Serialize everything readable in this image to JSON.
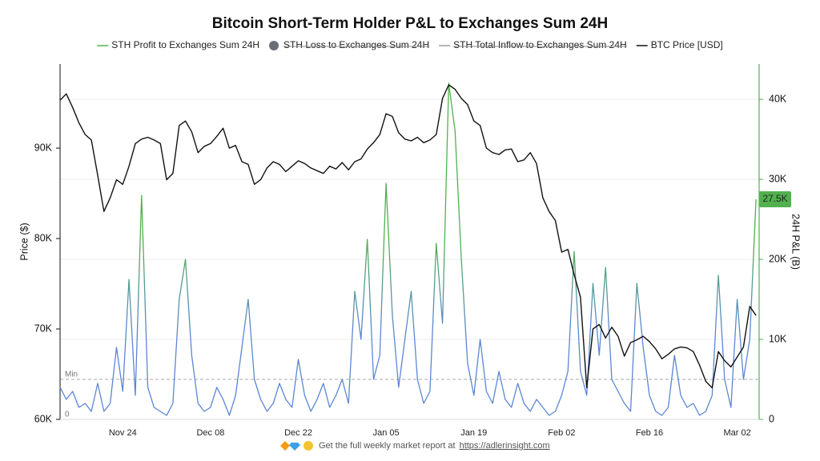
{
  "chart_data": {
    "type": "line",
    "title": "Bitcoin Short-Term Holder P&L to Exchanges Sum 24H",
    "ylabel": "Price ($)",
    "y2label": "24H P&L (B)",
    "categories": [
      null,
      null,
      null,
      null,
      null,
      null,
      null,
      null,
      null,
      null,
      "Nov 24",
      null,
      null,
      null,
      null,
      null,
      null,
      null,
      null,
      null,
      null,
      null,
      null,
      null,
      "Dec 08",
      null,
      null,
      null,
      null,
      null,
      null,
      null,
      null,
      null,
      null,
      null,
      null,
      null,
      "Dec 22",
      null,
      null,
      null,
      null,
      null,
      null,
      null,
      null,
      null,
      null,
      null,
      null,
      null,
      "Jan 05",
      null,
      null,
      null,
      null,
      null,
      null,
      null,
      null,
      null,
      null,
      null,
      null,
      null,
      "Jan 19",
      null,
      null,
      null,
      null,
      null,
      null,
      null,
      null,
      null,
      null,
      null,
      null,
      null,
      "Feb 02",
      null,
      null,
      null,
      null,
      null,
      null,
      null,
      null,
      null,
      null,
      null,
      null,
      null,
      "Feb 16",
      null,
      null,
      null,
      null,
      null,
      null,
      null,
      null,
      null,
      null,
      null,
      null,
      null,
      "Mar 02",
      null,
      null,
      null
    ],
    "series": [
      {
        "name": "STH Profit to Exchanges Sum 24H",
        "color": "#52b04f",
        "gradient_low_color": "#5b86d4",
        "axis": "y2",
        "visible": true,
        "values": [
          4000,
          2500,
          3500,
          1500,
          2000,
          1000,
          4500,
          1000,
          2000,
          9000,
          3500,
          17500,
          3000,
          28000,
          4000,
          1500,
          1000,
          500,
          2000,
          15000,
          20000,
          8000,
          2000,
          1000,
          1500,
          4000,
          2500,
          500,
          3000,
          9000,
          15000,
          5000,
          2500,
          1000,
          2000,
          4500,
          2500,
          1500,
          7500,
          3000,
          1000,
          2500,
          4500,
          1500,
          3000,
          5000,
          2000,
          16000,
          10000,
          22500,
          5000,
          8000,
          29500,
          13000,
          4000,
          10000,
          16000,
          5000,
          2000,
          3500,
          22000,
          12000,
          42000,
          36000,
          20000,
          7000,
          3000,
          10000,
          3500,
          2000,
          6000,
          2500,
          1500,
          4500,
          2000,
          1000,
          2500,
          1500,
          500,
          1000,
          3000,
          6000,
          21000,
          6000,
          3000,
          17000,
          8000,
          19000,
          5000,
          3500,
          2000,
          1000,
          17000,
          9000,
          3000,
          1000,
          500,
          1500,
          8000,
          3000,
          1500,
          2000,
          500,
          1000,
          3000,
          18000,
          5000,
          1500,
          15000,
          5000,
          10000,
          27500
        ],
        "value_labels": [
          null,
          null,
          null,
          null,
          null,
          null,
          null,
          null,
          null,
          null,
          null,
          null,
          null,
          null,
          null,
          null,
          null,
          null,
          null,
          null,
          null,
          null,
          null,
          null,
          null,
          null,
          null,
          null,
          null,
          null,
          null,
          null,
          null,
          null,
          null,
          null,
          null,
          null,
          null,
          null,
          null,
          null,
          null,
          null,
          null,
          null,
          null,
          null,
          null,
          null,
          null,
          null,
          null,
          null,
          null,
          null,
          null,
          null,
          null,
          null,
          null,
          null,
          null,
          null,
          null,
          null,
          null,
          null,
          null,
          null,
          null,
          null,
          null,
          null,
          null,
          null,
          null,
          null,
          null,
          null,
          null,
          null,
          null,
          null,
          null,
          null,
          null,
          null,
          null,
          null,
          null,
          null,
          null,
          null,
          null,
          null,
          null,
          null,
          null,
          null,
          null,
          null,
          null,
          null,
          null,
          null,
          null,
          null,
          null,
          null,
          null,
          "27.5K"
        ]
      },
      {
        "name": "STH Loss to Exchanges Sum 24H",
        "color": "#6b6e78",
        "marker": "circle",
        "axis": "y2",
        "visible": false
      },
      {
        "name": "STH Total Inflow to  Exchanges Sum 24H",
        "color": "#9a9ca3",
        "axis": "y2",
        "visible": false
      },
      {
        "name": "BTC Price [USD]",
        "color": "#111111",
        "axis": "y",
        "visible": true,
        "values": [
          95300,
          96000,
          94500,
          92800,
          91500,
          90900,
          87000,
          83000,
          84500,
          86500,
          86000,
          88000,
          90500,
          91000,
          91200,
          90900,
          90500,
          86500,
          87200,
          92500,
          93000,
          91800,
          89500,
          90200,
          90500,
          91300,
          92200,
          90000,
          90300,
          88500,
          88200,
          86000,
          86500,
          87800,
          88500,
          88200,
          87400,
          88000,
          88600,
          88300,
          87800,
          87500,
          87200,
          88000,
          87700,
          88400,
          87600,
          88500,
          88800,
          89900,
          90600,
          91500,
          93800,
          93500,
          91700,
          91000,
          90800,
          91200,
          90600,
          90900,
          91500,
          95500,
          97000,
          96500,
          95500,
          94800,
          93000,
          92500,
          90000,
          89500,
          89300,
          89800,
          89900,
          88500,
          88700,
          89500,
          88300,
          84500,
          83000,
          82000,
          78500,
          78800,
          76000,
          73500,
          63500,
          70000,
          70500,
          69000,
          70200,
          69200,
          67000,
          68500,
          68800,
          69200,
          68600,
          67800,
          66700,
          67200,
          67800,
          68000,
          67900,
          67500,
          66000,
          64200,
          63500,
          67500,
          66500,
          65800,
          66900,
          68000,
          72500,
          71500
        ]
      }
    ],
    "ylim": [
      60000,
      99300
    ],
    "yticks": [
      {
        "value": 60000,
        "label": "60K"
      },
      {
        "value": 70000,
        "label": "70K"
      },
      {
        "value": 80000,
        "label": "80K"
      },
      {
        "value": 90000,
        "label": "90K"
      }
    ],
    "y2lim": [
      0,
      44400
    ],
    "y2ticks": [
      0,
      {
        "value": 10000,
        "label": "10K"
      },
      {
        "value": 20000,
        "label": "20K"
      },
      {
        "value": 30000,
        "label": "30K"
      },
      {
        "value": 40000,
        "label": "40K"
      }
    ],
    "reference_lines": [
      {
        "value": 5000,
        "label": "Min",
        "axis": "y2"
      },
      {
        "value": 0,
        "label": "0",
        "axis": "y2"
      }
    ],
    "grid": true
  },
  "footer": {
    "text": "Get the full weekly market report at",
    "link": "https://adlerinsight.com"
  }
}
